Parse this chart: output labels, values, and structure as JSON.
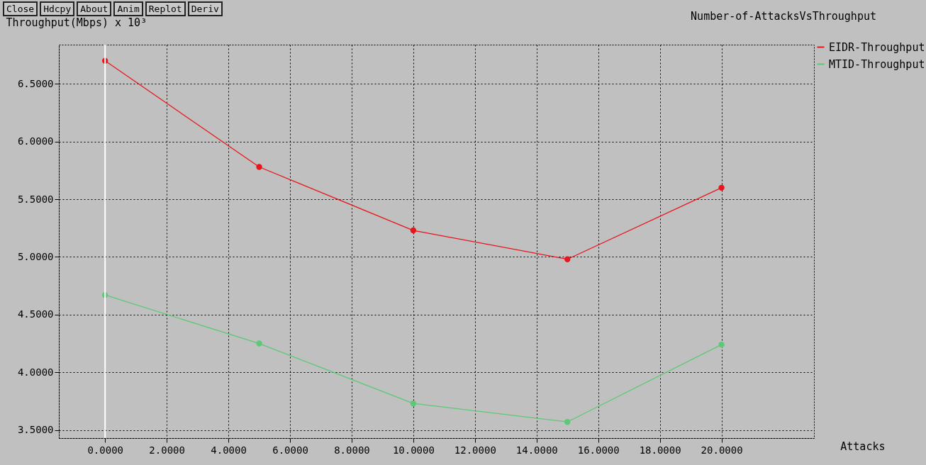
{
  "chart_data": {
    "type": "line",
    "title": "Number-of-AttacksVsThroughput",
    "xlabel": "Attacks",
    "ylabel": "Throughput(Mbps) x 10³",
    "annotations": [
      "Close",
      "Hdcpy",
      "About",
      "Anim",
      "Replot",
      "Deriv"
    ],
    "x": [
      0,
      5,
      10,
      15,
      20
    ],
    "series": [
      {
        "name": "EIDR-Throughput",
        "color": "#e8151b",
        "values": [
          6.7,
          5.78,
          5.23,
          4.98,
          5.6
        ]
      },
      {
        "name": "MTID-Throughput",
        "color": "#5cc878",
        "values": [
          4.67,
          4.25,
          3.73,
          3.57,
          4.24
        ]
      }
    ],
    "xlim": [
      -1.5,
      23
    ],
    "xticks": [
      {
        "value": 0,
        "label": "0.0000"
      },
      {
        "value": 2,
        "label": "2.0000"
      },
      {
        "value": 4,
        "label": "4.0000"
      },
      {
        "value": 6,
        "label": "6.0000"
      },
      {
        "value": 8,
        "label": "8.0000"
      },
      {
        "value": 10,
        "label": "10.0000"
      },
      {
        "value": 12,
        "label": "12.0000"
      },
      {
        "value": 14,
        "label": "14.0000"
      },
      {
        "value": 16,
        "label": "16.0000"
      },
      {
        "value": 18,
        "label": "18.0000"
      },
      {
        "value": 20,
        "label": "20.0000"
      }
    ],
    "ylim": [
      3.43,
      6.84
    ],
    "yticks": [
      {
        "value": 3.5,
        "label": "3.5000"
      },
      {
        "value": 4,
        "label": "4.0000"
      },
      {
        "value": 4.5,
        "label": "4.5000"
      },
      {
        "value": 5,
        "label": "5.0000"
      },
      {
        "value": 5.5,
        "label": "5.5000"
      },
      {
        "value": 6,
        "label": "6.0000"
      },
      {
        "value": 6.5,
        "label": "6.5000"
      }
    ],
    "ref_lines": [
      {
        "axis": "x",
        "value": 0,
        "color": "#ffffff"
      }
    ],
    "grid": true,
    "legend": "top right",
    "marker": "circle",
    "line_style": "solid"
  }
}
